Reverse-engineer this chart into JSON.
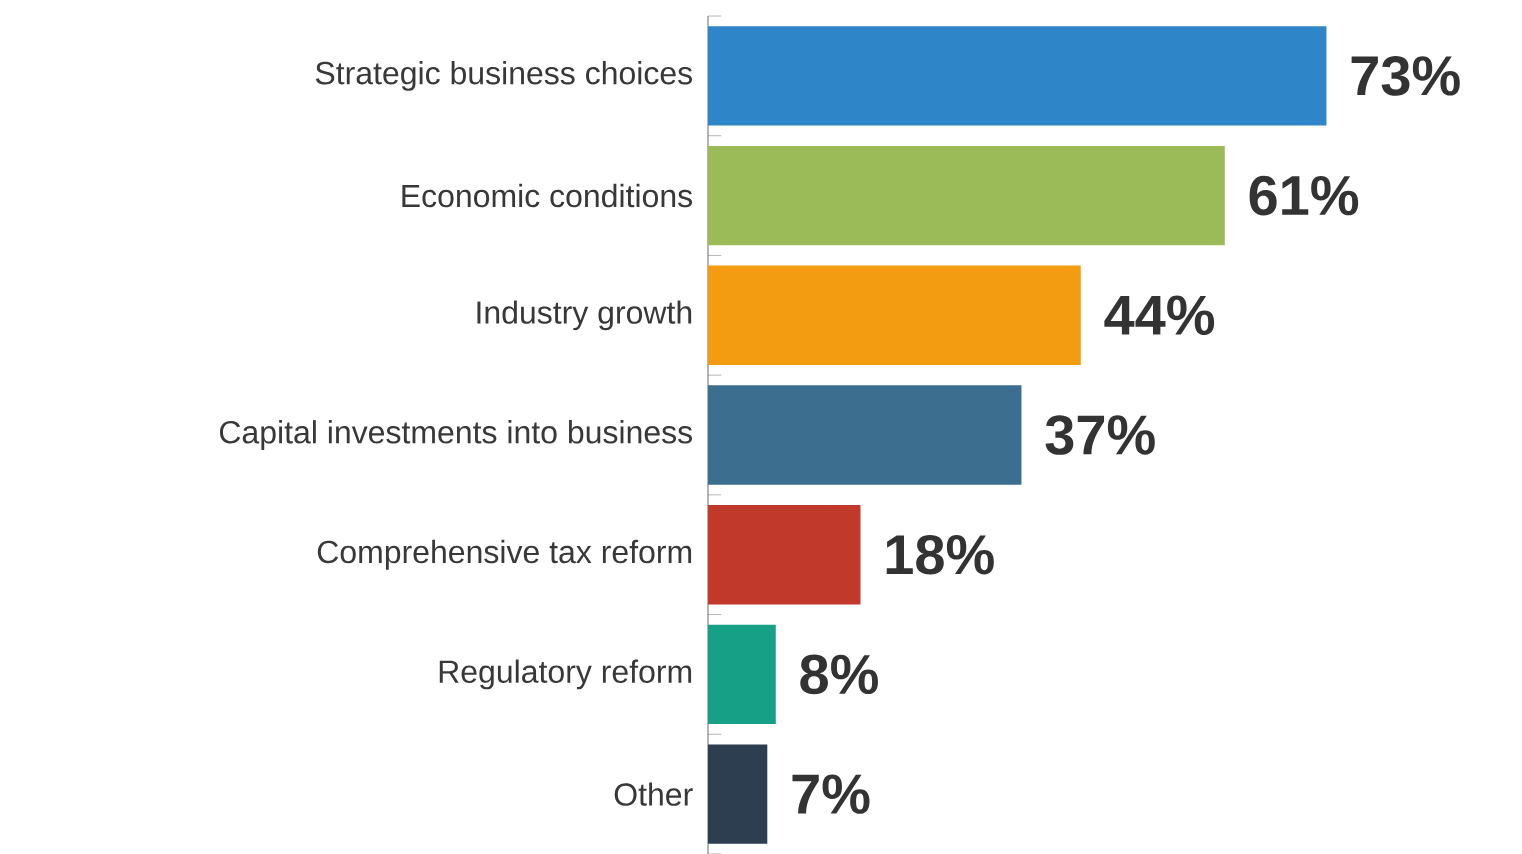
{
  "chart_data": {
    "type": "bar",
    "orientation": "horizontal",
    "relative": false,
    "categories": [
      "Strategic business choices",
      "Economic conditions",
      "Industry growth",
      "Capital investments into business",
      "Comprehensive tax reform",
      "Regulatory reform",
      "Other"
    ],
    "values": [
      73,
      61,
      44,
      37,
      18,
      8,
      7
    ],
    "value_labels": [
      "73%",
      "61%",
      "44%",
      "37%",
      "18%",
      "8%",
      "7%"
    ],
    "colors": [
      "#2e86c8",
      "#9bbb59",
      "#f39c12",
      "#3b6e8f",
      "#c0392b",
      "#16a085",
      "#2c3e50"
    ]
  }
}
